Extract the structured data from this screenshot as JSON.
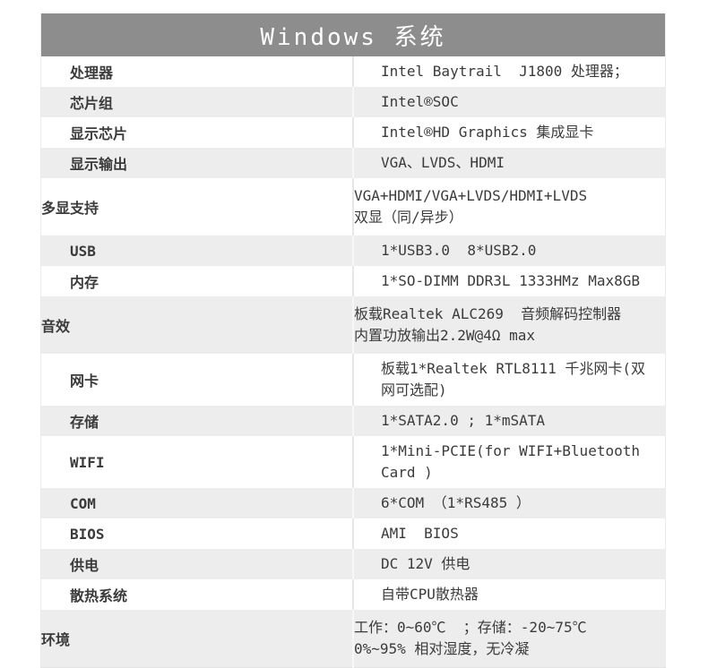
{
  "title": "Windows 系统",
  "colors": {
    "header_bg": "#8d8d8d",
    "header_text": "#ffffff",
    "row_bg": "#ffffff",
    "row_alt_bg": "#ededed",
    "text": "#3b3b3b"
  },
  "table": {
    "rows": [
      {
        "label": "处理器",
        "lines": [
          "Intel Baytrail  J1800 处理器；"
        ]
      },
      {
        "label": "芯片组",
        "lines": [
          "Intel®SOC"
        ]
      },
      {
        "label": "显示芯片",
        "lines": [
          "Intel®HD Graphics 集成显卡"
        ]
      },
      {
        "label": "显示输出",
        "lines": [
          "VGA、LVDS、HDMI"
        ]
      },
      {
        "label": "多显支持",
        "lines": [
          "VGA+HDMI/VGA+LVDS/HDMI+LVDS",
          "双显（同/异步）"
        ]
      },
      {
        "label": "USB",
        "lines": [
          "1*USB3.0  8*USB2.0"
        ]
      },
      {
        "label": "内存",
        "lines": [
          "1*SO-DIMM DDR3L 1333HMz Max8GB"
        ]
      },
      {
        "label": "音效",
        "lines": [
          "板载Realtek ALC269  音频解码控制器",
          "内置功放输出2.2W@4Ω max"
        ]
      },
      {
        "label": "网卡",
        "lines": [
          "板载1*Realtek RTL8111 千兆网卡(双网可选配)"
        ]
      },
      {
        "label": "存储",
        "lines": [
          "1*SATA2.0 ; 1*mSATA"
        ]
      },
      {
        "label": "WIFI",
        "lines": [
          "1*Mini-PCIE(for WIFI+Bluetooth Card )"
        ]
      },
      {
        "label": "COM",
        "lines": [
          "6*COM （1*RS485 ）"
        ]
      },
      {
        "label": "BIOS",
        "lines": [
          "AMI  BIOS"
        ]
      },
      {
        "label": "供电",
        "lines": [
          "DC 12V 供电"
        ]
      },
      {
        "label": "散热系统",
        "lines": [
          "自带CPU散热器"
        ]
      },
      {
        "label": "环境",
        "lines": [
          "工作：0~60℃  ；存储：-20~75℃",
          "0%~95% 相对湿度，无冷凝"
        ]
      }
    ]
  }
}
